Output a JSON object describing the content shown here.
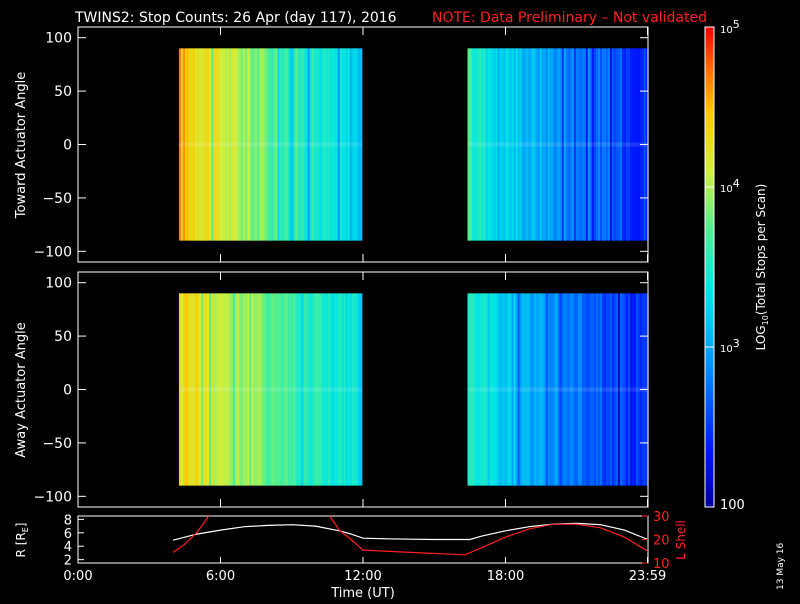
{
  "header": {
    "title": "TWINS2: Stop Counts: 26 Apr (day 117), 2016",
    "note": "NOTE: Data Preliminary – Not validated"
  },
  "footer": {
    "date_stamp": "13 May 16"
  },
  "colors": {
    "axis": "#ffffff",
    "note": "#ff2020",
    "lshell": "#ff2020",
    "rline": "#ffffff",
    "background": "#000000"
  },
  "colorbar": {
    "label": "LOG10(Total Stops per Scan)",
    "label_main": "LOG",
    "label_sub": "10",
    "label_rest": "(Total Stops per Scan)",
    "range": [
      100,
      100000
    ],
    "tick_labels": [
      {
        "base": "10",
        "exp": "5",
        "value": 100000
      },
      {
        "base": "10",
        "exp": "4",
        "value": 10000
      },
      {
        "base": "10",
        "exp": "3",
        "value": 1000
      },
      {
        "base": "100",
        "exp": "",
        "value": 100
      }
    ]
  },
  "chart_data": [
    {
      "type": "heatmap",
      "panel": "toward",
      "ylabel": "Toward Actuator Angle",
      "xlim": [
        0,
        24
      ],
      "ylim": [
        -110,
        110
      ],
      "yticks": [
        100,
        50,
        0,
        -50,
        -100
      ],
      "ytick_labels": [
        "100",
        "50",
        "0",
        "−50",
        "−100"
      ],
      "angle_range": [
        -90,
        90
      ],
      "segments": [
        {
          "start": 4.25,
          "end": 11.95,
          "log_start": 4.55,
          "log_end": 3.2
        },
        {
          "start": 16.4,
          "end": 24.0,
          "log_start": 3.6,
          "log_end": 2.45
        }
      ]
    },
    {
      "type": "heatmap",
      "panel": "away",
      "ylabel": "Away Actuator Angle",
      "xlim": [
        0,
        24
      ],
      "ylim": [
        -110,
        110
      ],
      "yticks": [
        100,
        50,
        0,
        -50,
        -100
      ],
      "ytick_labels": [
        "100",
        "50",
        "0",
        "−50",
        "−100"
      ],
      "angle_range": [
        -90,
        90
      ],
      "segments": [
        {
          "start": 4.25,
          "end": 11.95,
          "log_start": 4.45,
          "log_end": 3.3
        },
        {
          "start": 16.4,
          "end": 24.0,
          "log_start": 3.5,
          "log_end": 2.4
        }
      ]
    },
    {
      "type": "line",
      "panel": "orbit",
      "ylabel_main": "R [R",
      "ylabel_sub": "E",
      "ylabel_end": "]",
      "ylabel_right": "L Shell",
      "xlabel": "Time (UT)",
      "xlim": [
        0,
        24
      ],
      "ylim": [
        1.5,
        8.5
      ],
      "yticks": [
        2,
        4,
        6,
        8
      ],
      "ytick_labels": [
        "2",
        "4",
        "6",
        "8"
      ],
      "y2lim": [
        10,
        30
      ],
      "y2ticks": [
        10,
        20,
        30
      ],
      "y2tick_labels": [
        "10",
        "20",
        "30"
      ],
      "xtick_labels": [
        "0:00",
        "6:00",
        "12:00",
        "18:00",
        "23:59"
      ],
      "xtick_values": [
        0,
        6,
        12,
        18,
        23.98
      ],
      "series": [
        {
          "name": "R",
          "color": "#ffffff",
          "x": [
            4,
            5,
            6,
            7,
            8,
            9,
            10,
            11,
            11.5,
            12,
            13,
            14,
            15,
            16,
            16.5,
            17,
            18,
            19,
            20,
            21,
            22,
            23,
            24
          ],
          "y": [
            4.9,
            5.8,
            6.4,
            6.9,
            7.1,
            7.2,
            7.0,
            6.3,
            5.8,
            5.2,
            5.1,
            5.05,
            5.0,
            5.0,
            5.0,
            5.5,
            6.3,
            6.9,
            7.3,
            7.4,
            7.2,
            6.4,
            5.0
          ]
        },
        {
          "name": "L Shell segment A",
          "color": "#ff2020",
          "x": [
            4,
            4.5,
            5,
            5.3,
            5.5
          ],
          "y": [
            14.5,
            18,
            23,
            27,
            30
          ]
        },
        {
          "name": "L Shell segment B",
          "color": "#ff2020",
          "x": [
            10.6,
            11,
            11.5,
            12,
            14,
            16.3,
            17,
            18,
            19,
            20,
            21,
            22,
            23,
            24
          ],
          "y": [
            30,
            24,
            20,
            15.5,
            14.5,
            13.5,
            16.5,
            21,
            24.5,
            26.5,
            26.5,
            25,
            21,
            15
          ]
        }
      ]
    }
  ]
}
